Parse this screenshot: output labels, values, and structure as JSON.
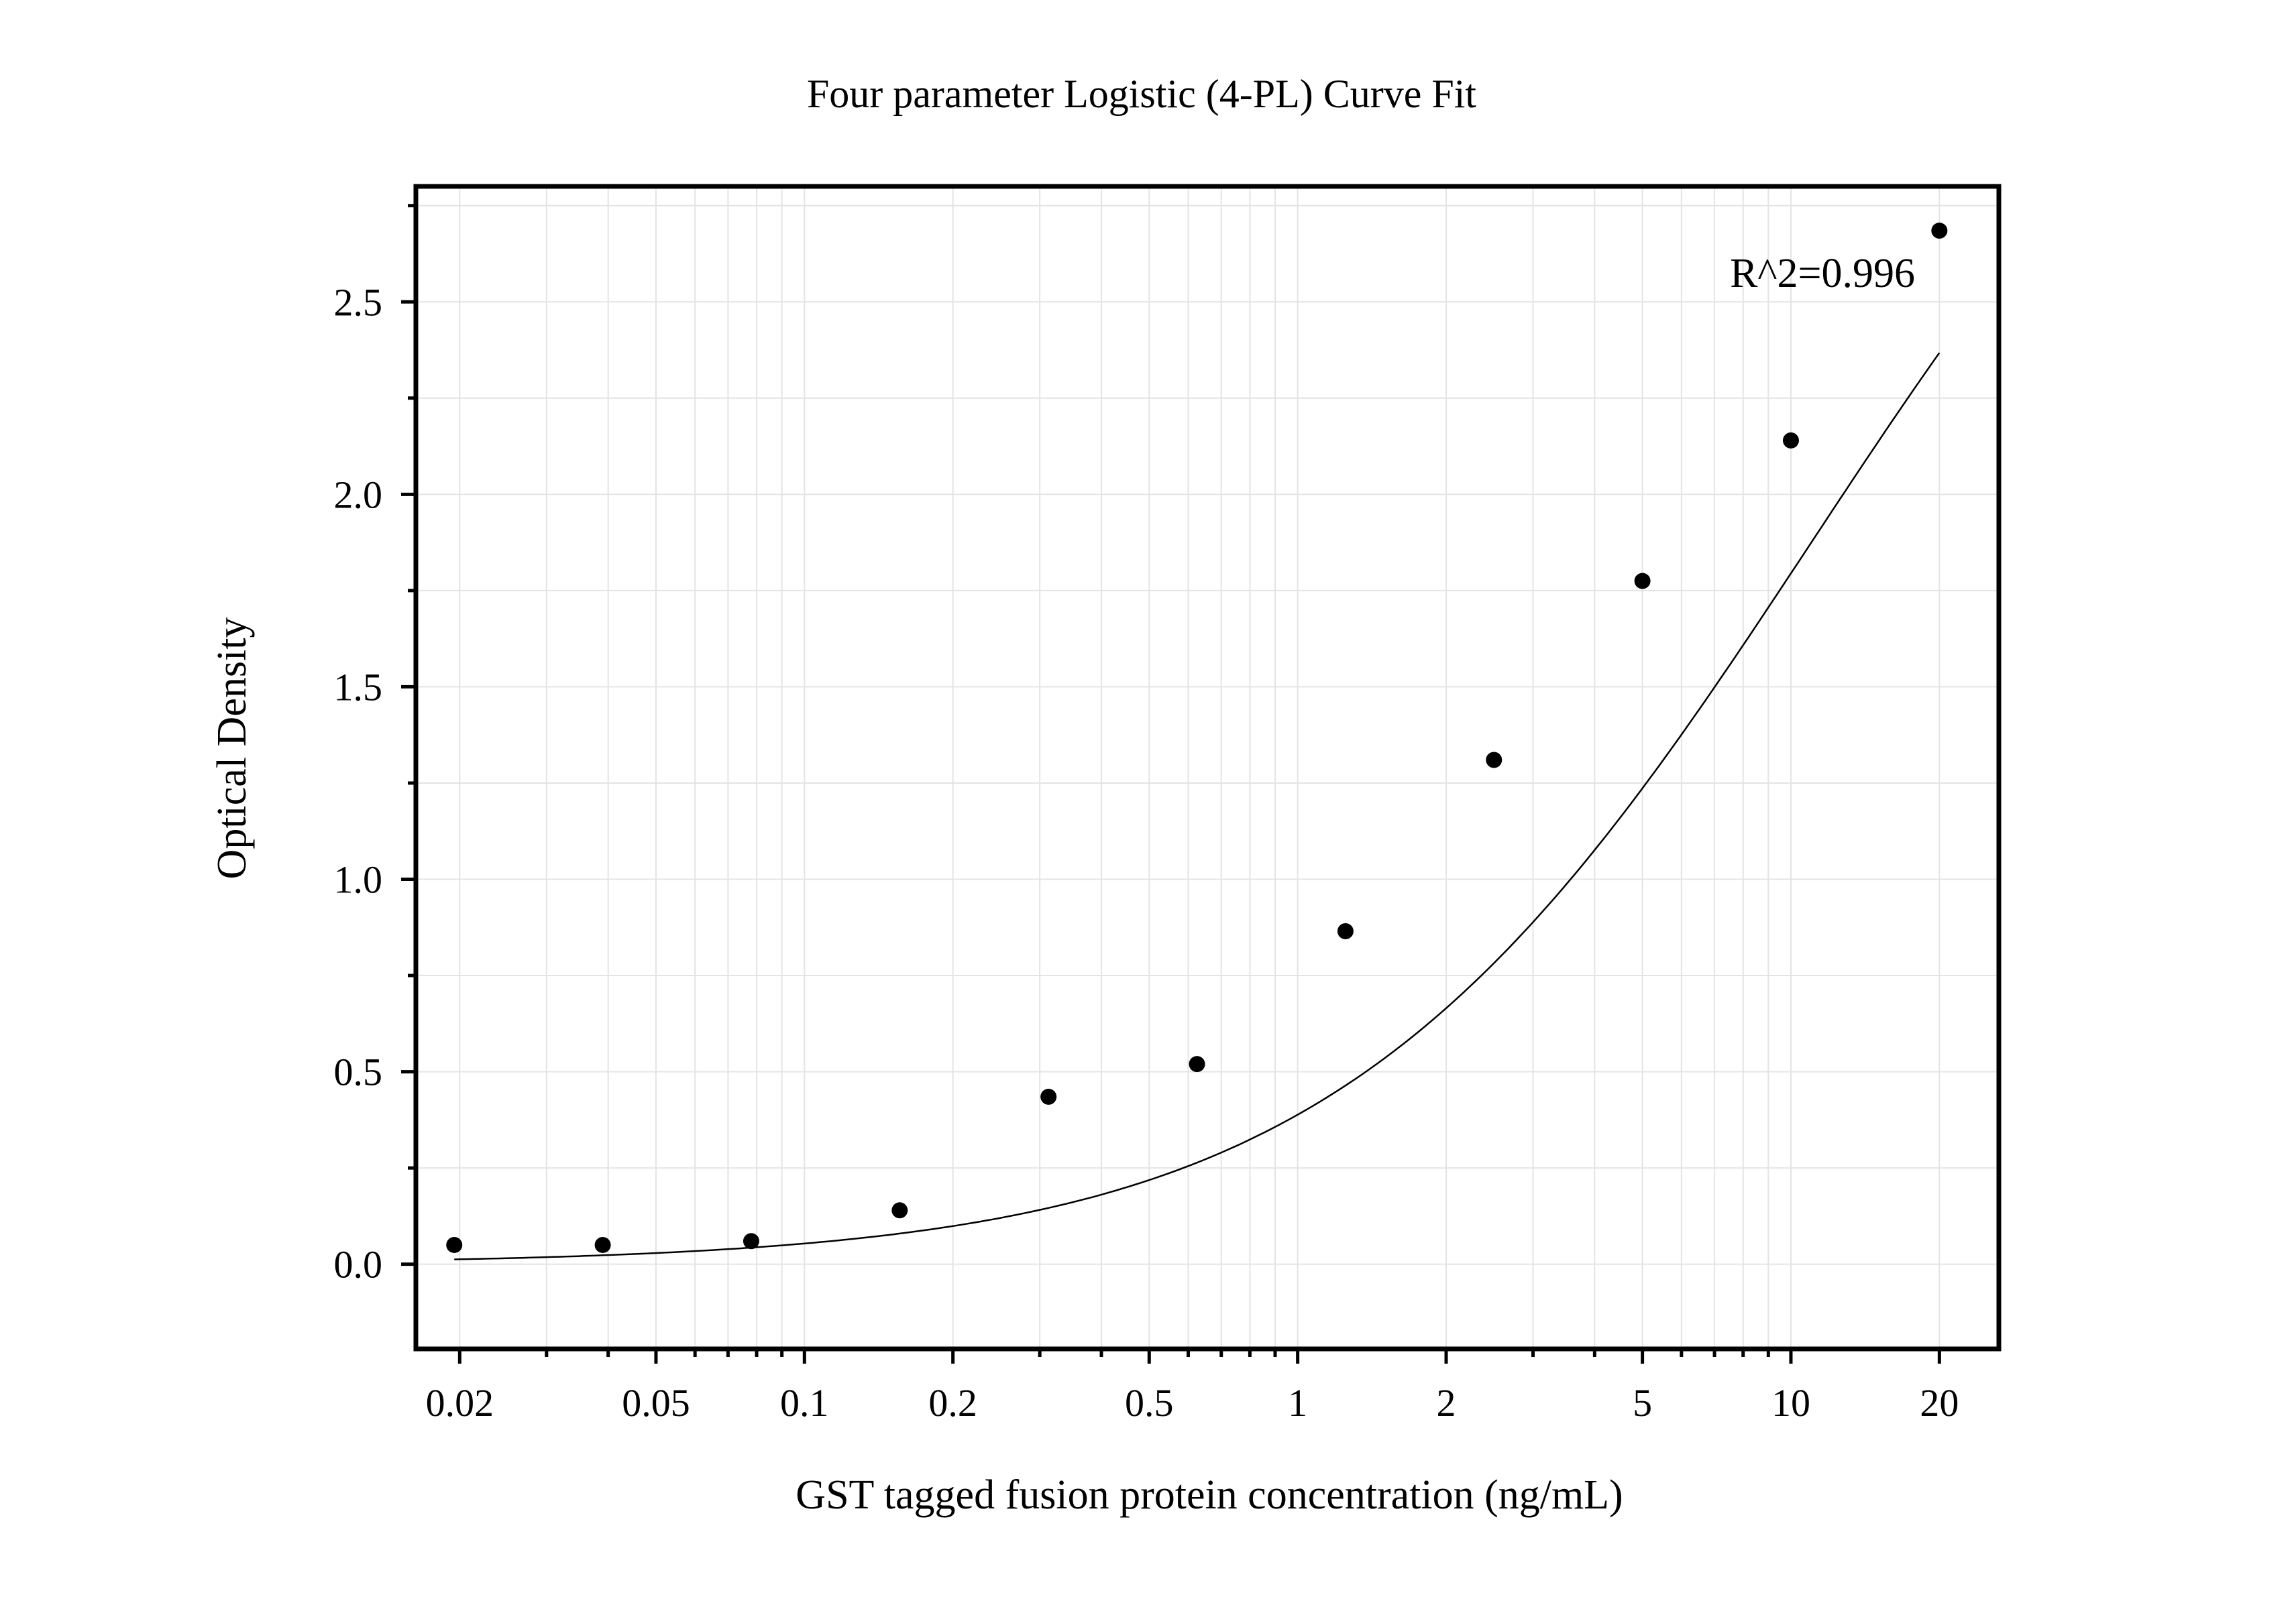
{
  "chart_data": {
    "type": "scatter",
    "title": "Four parameter Logistic (4-PL) Curve Fit",
    "xlabel": "GST tagged fusion protein concentration (ng/mL)",
    "ylabel": "Optical Density",
    "x_scale": "log",
    "xlim": [
      0.0163,
      26.4
    ],
    "ylim": [
      -0.22,
      2.8
    ],
    "grid": true,
    "x_ticks": [
      0.02,
      0.05,
      0.1,
      0.2,
      0.5,
      1,
      2,
      5,
      10,
      20
    ],
    "x_tick_labels": [
      "0.02",
      "0.05",
      "0.1",
      "0.2",
      "0.5",
      "1",
      "2",
      "5",
      "10",
      "20"
    ],
    "y_ticks": [
      0.0,
      0.5,
      1.0,
      1.5,
      2.0,
      2.5
    ],
    "y_tick_labels": [
      "0.0",
      "0.5",
      "1.0",
      "1.5",
      "2.0",
      "2.5"
    ],
    "annotation": "R^2=0.996",
    "series": [
      {
        "kind": "points",
        "color": "#000000",
        "x": [
          0.0195,
          0.039,
          0.078,
          0.156,
          0.3125,
          0.625,
          1.25,
          2.5,
          5,
          10,
          20
        ],
        "y": [
          0.05,
          0.05,
          0.06,
          0.14,
          0.435,
          0.52,
          0.865,
          1.31,
          1.775,
          2.14,
          2.685
        ]
      },
      {
        "kind": "curve",
        "color": "#000000",
        "model": "4PL",
        "params": {
          "A": 0.0,
          "B": 0.9,
          "C": 11.0,
          "D": 3.75
        },
        "x_range": [
          0.0195,
          20
        ]
      }
    ],
    "colors": {
      "axes": "#000000",
      "grid": "#e4e4e4",
      "background": "#ffffff"
    }
  }
}
